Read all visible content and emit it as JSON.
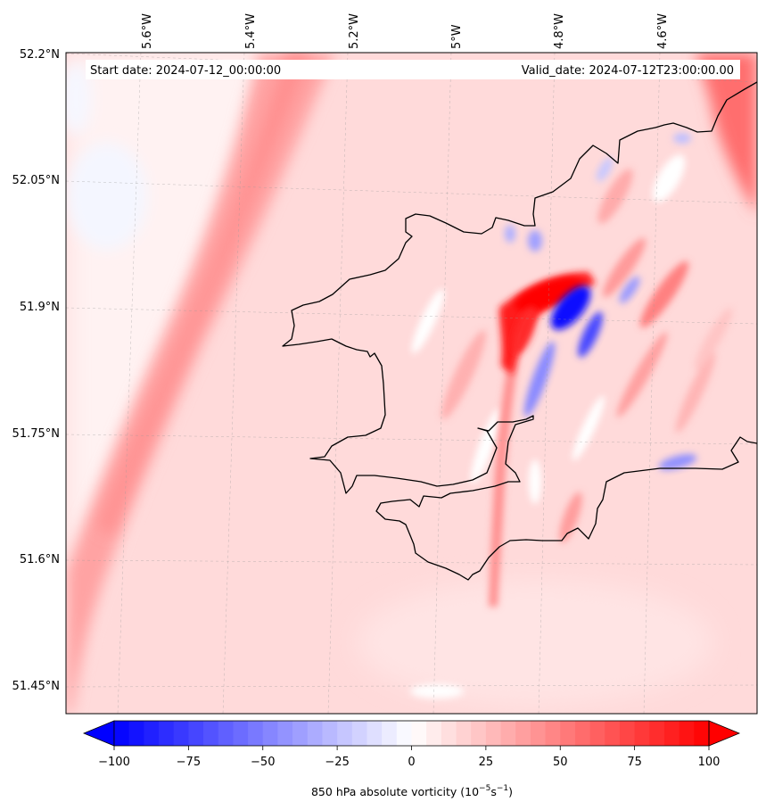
{
  "banner": {
    "start_date": "Start date: 2024-07-12_00:00:00",
    "valid_date": "Valid_date: 2024-07-12T23:00:00.00"
  },
  "map": {
    "lon_labels": [
      "5.6°W",
      "5.4°W",
      "5.2°W",
      "5°W",
      "4.8°W",
      "4.6°W"
    ],
    "lat_labels": [
      "52.2°N",
      "52.05°N",
      "51.9°N",
      "51.75°N",
      "51.6°N",
      "51.45°N"
    ],
    "gridlines": true
  },
  "colorbar": {
    "colormap": "bwr",
    "min": -100,
    "max": 100,
    "extend": "both",
    "tick_values": [
      -100,
      -75,
      -50,
      -25,
      0,
      25,
      50,
      75,
      100
    ],
    "tick_labels": [
      "−100",
      "−75",
      "−50",
      "−25",
      "0",
      "25",
      "50",
      "75",
      "100"
    ],
    "label_main": "850 hPa absolute vorticity (10",
    "label_exp1": "−5",
    "label_mid": "s",
    "label_exp2": "−1",
    "label_end": ")"
  },
  "colors": {
    "negative": "#0000ff",
    "neutral": "#ffffff",
    "positive": "#ff0000",
    "coastline": "#000000"
  }
}
